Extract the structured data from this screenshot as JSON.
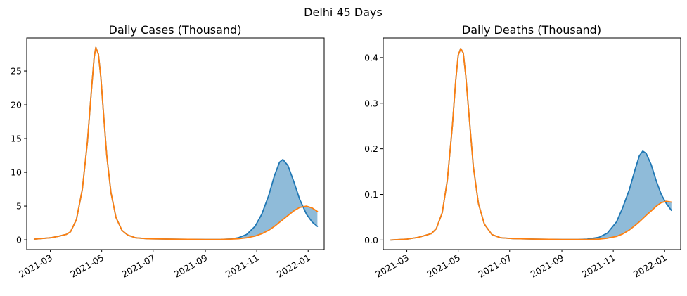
{
  "figure": {
    "suptitle": "Delhi 45 Days"
  },
  "colors": {
    "series_blue": "#1f77b4",
    "series_orange": "#ff7f0e",
    "fill_blue": "#1f77b4",
    "axes": "#000000",
    "background": "#ffffff"
  },
  "chart_data": [
    {
      "type": "line",
      "title": "Daily Cases (Thousand)",
      "xlabel": "",
      "ylabel": "",
      "x_axis": "date",
      "xlim": [
        "2021-02-01",
        "2022-01-20"
      ],
      "ylim": [
        -1.45,
        29.9
      ],
      "x_ticks": [
        "2021-03",
        "2021-05",
        "2021-07",
        "2021-09",
        "2021-11",
        "2022-01"
      ],
      "y_ticks": [
        0,
        5,
        10,
        15,
        20,
        25
      ],
      "grid": false,
      "legend": "none",
      "fill_between": "blue series above orange series",
      "series": [
        {
          "color": "#1f77b4",
          "x": [
            "2021-02-10",
            "2021-03-01",
            "2021-03-10",
            "2021-03-20",
            "2021-03-25",
            "2021-04-01",
            "2021-04-08",
            "2021-04-14",
            "2021-04-19",
            "2021-04-22",
            "2021-04-24",
            "2021-04-27",
            "2021-04-30",
            "2021-05-03",
            "2021-05-07",
            "2021-05-12",
            "2021-05-18",
            "2021-05-25",
            "2021-06-01",
            "2021-06-10",
            "2021-06-25",
            "2021-07-10",
            "2021-08-01",
            "2021-09-01",
            "2021-09-20",
            "2021-10-01",
            "2021-10-10",
            "2021-10-20",
            "2021-10-30",
            "2021-11-07",
            "2021-11-15",
            "2021-11-22",
            "2021-11-28",
            "2021-12-02",
            "2021-12-08",
            "2021-12-15",
            "2021-12-22",
            "2021-12-30",
            "2022-01-06",
            "2022-01-12"
          ],
          "y": [
            0.1,
            0.3,
            0.5,
            0.8,
            1.2,
            3.0,
            7.5,
            14.5,
            22.5,
            27.0,
            28.5,
            27.5,
            24.0,
            19.0,
            12.5,
            7.0,
            3.3,
            1.4,
            0.7,
            0.3,
            0.15,
            0.12,
            0.08,
            0.05,
            0.06,
            0.12,
            0.3,
            0.8,
            2.0,
            3.8,
            6.5,
            9.5,
            11.5,
            11.9,
            11.0,
            8.6,
            6.0,
            3.8,
            2.6,
            2.0
          ]
        },
        {
          "color": "#ff7f0e",
          "x": [
            "2021-02-10",
            "2021-03-01",
            "2021-03-10",
            "2021-03-20",
            "2021-03-25",
            "2021-04-01",
            "2021-04-08",
            "2021-04-14",
            "2021-04-19",
            "2021-04-22",
            "2021-04-24",
            "2021-04-27",
            "2021-04-30",
            "2021-05-03",
            "2021-05-07",
            "2021-05-12",
            "2021-05-18",
            "2021-05-25",
            "2021-06-01",
            "2021-06-10",
            "2021-06-25",
            "2021-07-10",
            "2021-08-01",
            "2021-09-01",
            "2021-09-20",
            "2021-10-01",
            "2021-10-10",
            "2021-10-20",
            "2021-10-30",
            "2021-11-07",
            "2021-11-15",
            "2021-11-22",
            "2021-11-28",
            "2021-12-02",
            "2021-12-08",
            "2021-12-15",
            "2021-12-22",
            "2021-12-30",
            "2022-01-06",
            "2022-01-12"
          ],
          "y": [
            0.1,
            0.3,
            0.5,
            0.8,
            1.2,
            3.0,
            7.5,
            14.5,
            22.5,
            27.0,
            28.5,
            27.5,
            24.0,
            19.0,
            12.5,
            7.0,
            3.3,
            1.4,
            0.7,
            0.3,
            0.15,
            0.12,
            0.08,
            0.05,
            0.06,
            0.1,
            0.15,
            0.3,
            0.55,
            0.9,
            1.4,
            2.0,
            2.6,
            3.0,
            3.6,
            4.3,
            4.8,
            5.0,
            4.7,
            4.2
          ]
        }
      ]
    },
    {
      "type": "line",
      "title": "Daily Deaths (Thousand)",
      "xlabel": "",
      "ylabel": "",
      "x_axis": "date",
      "xlim": [
        "2021-02-01",
        "2022-01-20"
      ],
      "ylim": [
        -0.021,
        0.443
      ],
      "x_ticks": [
        "2021-03",
        "2021-05",
        "2021-07",
        "2021-09",
        "2021-11",
        "2022-01"
      ],
      "y_ticks": [
        0.0,
        0.1,
        0.2,
        0.3,
        0.4
      ],
      "grid": false,
      "legend": "none",
      "fill_between": "blue series above orange series",
      "series": [
        {
          "color": "#1f77b4",
          "x": [
            "2021-02-10",
            "2021-03-01",
            "2021-03-15",
            "2021-03-30",
            "2021-04-05",
            "2021-04-12",
            "2021-04-18",
            "2021-04-24",
            "2021-04-28",
            "2021-05-01",
            "2021-05-04",
            "2021-05-07",
            "2021-05-10",
            "2021-05-14",
            "2021-05-19",
            "2021-05-25",
            "2021-06-01",
            "2021-06-10",
            "2021-06-20",
            "2021-07-05",
            "2021-08-01",
            "2021-09-01",
            "2021-09-20",
            "2021-10-01",
            "2021-10-15",
            "2021-10-25",
            "2021-11-05",
            "2021-11-12",
            "2021-11-20",
            "2021-11-27",
            "2021-12-02",
            "2021-12-06",
            "2021-12-10",
            "2021-12-16",
            "2021-12-22",
            "2021-12-28",
            "2022-01-03",
            "2022-01-09"
          ],
          "y": [
            0.0,
            0.002,
            0.006,
            0.014,
            0.025,
            0.06,
            0.13,
            0.25,
            0.35,
            0.405,
            0.42,
            0.41,
            0.36,
            0.27,
            0.16,
            0.08,
            0.035,
            0.012,
            0.005,
            0.003,
            0.002,
            0.001,
            0.001,
            0.002,
            0.006,
            0.015,
            0.04,
            0.07,
            0.11,
            0.155,
            0.185,
            0.195,
            0.19,
            0.165,
            0.13,
            0.1,
            0.08,
            0.065
          ]
        },
        {
          "color": "#ff7f0e",
          "x": [
            "2021-02-10",
            "2021-03-01",
            "2021-03-15",
            "2021-03-30",
            "2021-04-05",
            "2021-04-12",
            "2021-04-18",
            "2021-04-24",
            "2021-04-28",
            "2021-05-01",
            "2021-05-04",
            "2021-05-07",
            "2021-05-10",
            "2021-05-14",
            "2021-05-19",
            "2021-05-25",
            "2021-06-01",
            "2021-06-10",
            "2021-06-20",
            "2021-07-05",
            "2021-08-01",
            "2021-09-01",
            "2021-09-20",
            "2021-10-01",
            "2021-10-15",
            "2021-10-25",
            "2021-11-05",
            "2021-11-12",
            "2021-11-20",
            "2021-11-27",
            "2021-12-02",
            "2021-12-06",
            "2021-12-10",
            "2021-12-16",
            "2021-12-22",
            "2021-12-28",
            "2022-01-03",
            "2022-01-09"
          ],
          "y": [
            0.0,
            0.002,
            0.006,
            0.014,
            0.025,
            0.06,
            0.13,
            0.25,
            0.35,
            0.405,
            0.42,
            0.41,
            0.36,
            0.27,
            0.16,
            0.08,
            0.035,
            0.012,
            0.005,
            0.003,
            0.002,
            0.001,
            0.001,
            0.001,
            0.002,
            0.004,
            0.008,
            0.013,
            0.022,
            0.032,
            0.04,
            0.047,
            0.054,
            0.064,
            0.074,
            0.082,
            0.085,
            0.083
          ]
        }
      ]
    }
  ]
}
